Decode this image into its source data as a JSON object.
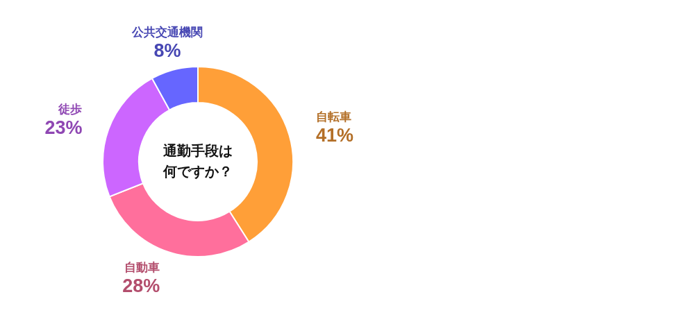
{
  "chart_data": {
    "type": "donut",
    "title": "通勤手段は",
    "subtitle": "何ですか？",
    "categories": [
      "自転車",
      "自動車",
      "徒歩",
      "公共交通機関"
    ],
    "values": [
      41,
      28,
      23,
      8
    ],
    "value_labels": [
      "41%",
      "28%",
      "23%",
      "8%"
    ],
    "colors": [
      "#ff9f38",
      "#ff6f9c",
      "#cc66ff",
      "#6666ff"
    ]
  }
}
